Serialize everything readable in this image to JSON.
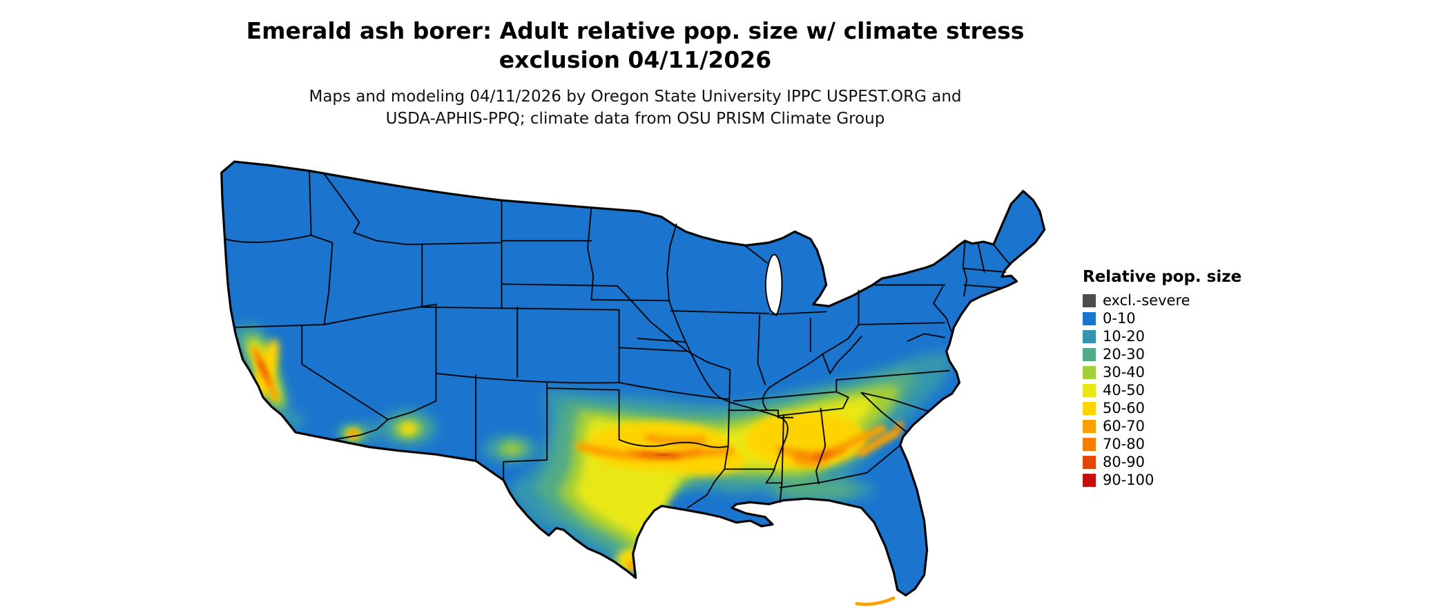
{
  "page": {
    "background": "#ffffff"
  },
  "title": {
    "line1": "Emerald ash borer: Adult relative pop. size w/ climate stress",
    "line2": "exclusion 04/11/2026"
  },
  "attribution": {
    "line1": "Maps and modeling 04/11/2026 by Oregon State University IPPC USPEST.ORG and",
    "line2": "USDA-APHIS-PPQ; climate data from OSU PRISM Climate Group"
  },
  "map": {
    "region": "Contiguous United States",
    "land_border_color": "#000000"
  },
  "legend": {
    "title": "Relative pop. size",
    "items": [
      {
        "label": "excl.-severe",
        "color": "#4D4D4D"
      },
      {
        "label": "0-10",
        "color": "#1B75CE"
      },
      {
        "label": "10-20",
        "color": "#3496AE"
      },
      {
        "label": "20-30",
        "color": "#52AC85"
      },
      {
        "label": "30-40",
        "color": "#A2CE3A"
      },
      {
        "label": "40-50",
        "color": "#E9E812"
      },
      {
        "label": "50-60",
        "color": "#FED402"
      },
      {
        "label": "60-70",
        "color": "#FBA004"
      },
      {
        "label": "70-80",
        "color": "#F57D04"
      },
      {
        "label": "80-90",
        "color": "#E54709"
      },
      {
        "label": "90-100",
        "color": "#C80D0D"
      }
    ]
  }
}
